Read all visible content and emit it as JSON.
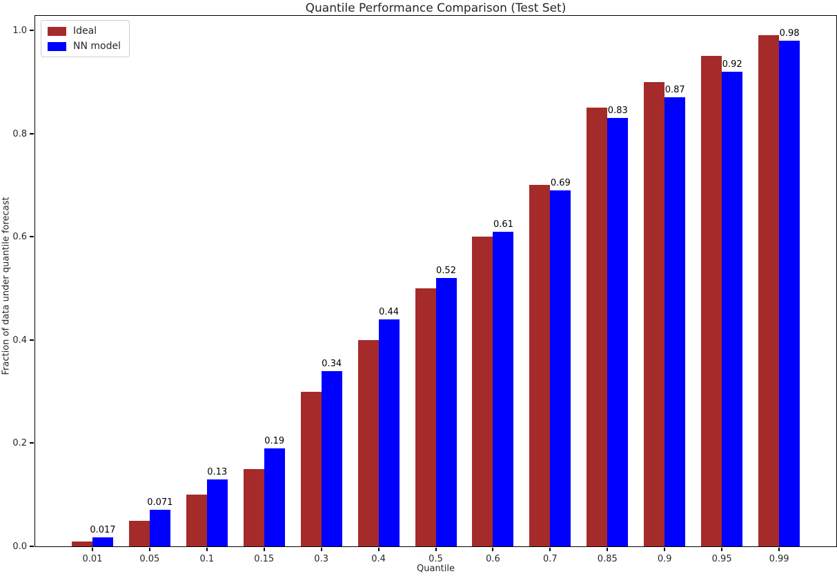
{
  "chart_data": {
    "type": "bar",
    "title": "Quantile Performance Comparison (Test Set)",
    "xlabel": "Quantile",
    "ylabel": "Fraction of data under quantile forecast",
    "categories": [
      "0.01",
      "0.05",
      "0.1",
      "0.15",
      "0.3",
      "0.4",
      "0.5",
      "0.6",
      "0.7",
      "0.85",
      "0.9",
      "0.95",
      "0.99"
    ],
    "series": [
      {
        "name": "Ideal",
        "color": "#A52A2A",
        "values": [
          0.01,
          0.05,
          0.1,
          0.15,
          0.3,
          0.4,
          0.5,
          0.6,
          0.7,
          0.85,
          0.9,
          0.95,
          0.99
        ]
      },
      {
        "name": "NN model",
        "color": "#0000FF",
        "values": [
          0.017,
          0.071,
          0.13,
          0.19,
          0.34,
          0.44,
          0.52,
          0.61,
          0.69,
          0.83,
          0.87,
          0.92,
          0.98
        ]
      }
    ],
    "bar_labels": [
      "0.017",
      "0.071",
      "0.13",
      "0.19",
      "0.34",
      "0.44",
      "0.52",
      "0.61",
      "0.69",
      "0.83",
      "0.87",
      "0.92",
      "0.98"
    ],
    "yticks": [
      "0.0",
      "0.2",
      "0.4",
      "0.6",
      "0.8",
      "1.0"
    ],
    "ylim": [
      0,
      1.028
    ],
    "grid": false,
    "legend_position": "upper left"
  }
}
